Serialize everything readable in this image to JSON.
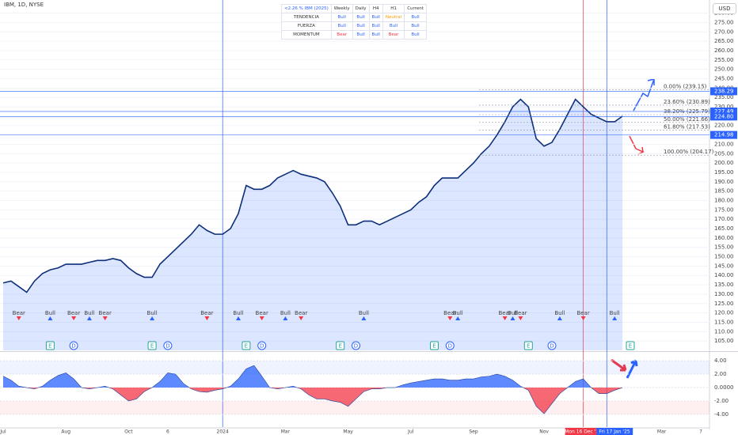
{
  "header": {
    "symbol": "IBM, 1D, NYSE",
    "currency": "USD"
  },
  "table": {
    "title": "<2.26 % IBM (2025)",
    "columns": [
      "Weekly",
      "Daily",
      "H4",
      "H1",
      "Current"
    ],
    "palette": {
      "Bull": "#2962ff",
      "Bear": "#f23645",
      "Neutral": "#ff9800"
    },
    "rows": [
      {
        "label": "TENDENCIA",
        "cells": [
          "Bull",
          "Bull",
          "Bull",
          "Neutral",
          "Bull"
        ]
      },
      {
        "label": "FUERZA",
        "cells": [
          "Bull",
          "Bull",
          "Bull",
          "Bull",
          "Bull"
        ]
      },
      {
        "label": "MOMENTUM",
        "cells": [
          "Bear",
          "Bull",
          "Bull",
          "Bear",
          "Bull"
        ]
      }
    ]
  },
  "chart_data": [
    {
      "type": "line",
      "color": "#0d2f7a",
      "area_color": "rgba(41,98,255,0.16)",
      "grid": true,
      "categories": [
        "Jul",
        null,
        null,
        null,
        null,
        null,
        null,
        null,
        "Aug",
        null,
        null,
        null,
        null,
        null,
        null,
        null,
        "Oct",
        null,
        null,
        null,
        null,
        "6",
        null,
        null,
        null,
        null,
        null,
        null,
        "2024",
        null,
        null,
        null,
        null,
        null,
        null,
        null,
        "Mar",
        null,
        null,
        null,
        null,
        null,
        null,
        null,
        "May",
        null,
        null,
        null,
        null,
        null,
        null,
        null,
        "Jul",
        null,
        null,
        null,
        null,
        null,
        null,
        null,
        "Sep",
        null,
        null,
        null,
        null,
        null,
        null,
        null,
        null,
        "Nov",
        null,
        null,
        null,
        null,
        "Mon 16 Dec '24",
        null,
        null,
        null,
        "Fri 17 Jan '25",
        null,
        null,
        null,
        null,
        null,
        "Mar",
        null,
        null,
        null,
        null,
        "7"
      ],
      "values": [
        136,
        137,
        134,
        131,
        137,
        141,
        143,
        144,
        146,
        146,
        146,
        147,
        148,
        148,
        149,
        148,
        144,
        141,
        139,
        139,
        146,
        150,
        154,
        158,
        162,
        167,
        164,
        162,
        162,
        165,
        173,
        188,
        186,
        186,
        188,
        192,
        194,
        196,
        194,
        193,
        192,
        190,
        184,
        177,
        167,
        167,
        169,
        169,
        167,
        169,
        171,
        173,
        175,
        179,
        182,
        188,
        192,
        192,
        192,
        196,
        200,
        205,
        209,
        215,
        222,
        230,
        234,
        230,
        213,
        209,
        211,
        218,
        226,
        234,
        230,
        226,
        224,
        222,
        222,
        225,
        null,
        null,
        null,
        null,
        null,
        null,
        null,
        null,
        null,
        null
      ],
      "signals": [
        null,
        null,
        "Bear",
        null,
        null,
        null,
        "Bull",
        null,
        null,
        "Bear",
        null,
        "Bull",
        null,
        "Bear",
        null,
        null,
        null,
        null,
        null,
        "Bull",
        null,
        null,
        null,
        null,
        null,
        null,
        "Bear",
        null,
        null,
        null,
        "Bull",
        null,
        null,
        "Bear",
        null,
        null,
        "Bull",
        null,
        "Bear",
        null,
        null,
        null,
        null,
        null,
        null,
        null,
        "Bull",
        null,
        null,
        null,
        null,
        null,
        null,
        null,
        null,
        null,
        null,
        "Bear",
        "Bull",
        null,
        null,
        null,
        null,
        null,
        "Bear",
        "Bull",
        "Bear",
        null,
        null,
        null,
        null,
        "Bull",
        null,
        null,
        "Bear",
        null,
        null,
        null,
        "Bull",
        null,
        null,
        null,
        null,
        null,
        null,
        null,
        null,
        null,
        null,
        null
      ],
      "signal_styles": {
        "Bull": {
          "color": "#2962ff",
          "direction": "up"
        },
        "Bear": {
          "color": "#f23645",
          "direction": "down"
        }
      },
      "events": [
        null,
        null,
        null,
        null,
        null,
        null,
        "E",
        null,
        null,
        "D",
        null,
        null,
        null,
        null,
        null,
        null,
        null,
        null,
        null,
        "E",
        null,
        "D",
        null,
        null,
        null,
        null,
        null,
        null,
        null,
        null,
        null,
        "E",
        null,
        "D",
        null,
        null,
        null,
        null,
        null,
        null,
        null,
        null,
        null,
        "E",
        null,
        "D",
        null,
        null,
        null,
        null,
        null,
        null,
        null,
        null,
        null,
        "E",
        null,
        "D",
        null,
        null,
        null,
        null,
        null,
        null,
        null,
        null,
        null,
        "E",
        null,
        null,
        "D",
        null,
        null,
        null,
        null,
        null,
        null,
        null,
        null,
        null,
        "E",
        null,
        null,
        null,
        null,
        null,
        null,
        null,
        null,
        null
      ],
      "event_colors": {
        "E": "#26a69a",
        "D": "#2962ff"
      },
      "fib_levels": [
        {
          "value": 239.15,
          "label": "0.00% (239.15)"
        },
        {
          "value": 230.89,
          "label": "23.60% (230.89)"
        },
        {
          "value": 225.79,
          "label": "38.20% (225.79)"
        },
        {
          "value": 221.66,
          "label": "50.00% (221.66)"
        },
        {
          "value": 217.53,
          "label": "61.80% (217.53)"
        },
        {
          "value": 204.17,
          "label": "100.00% (204.17)"
        }
      ],
      "price_labels": [
        238.29,
        227.49,
        {
          "value": 224.8,
          "label": "224.80"
        },
        214.98
      ],
      "ylim": [
        100,
        287
      ],
      "yticks": [
        {
          "value": 105,
          "label": "105.00"
        },
        {
          "value": 110,
          "label": "110.00"
        },
        {
          "value": 115,
          "label": "115.00"
        },
        {
          "value": 120,
          "label": "120.00"
        },
        {
          "value": 125,
          "label": "125.00"
        },
        {
          "value": 130,
          "label": "130.00"
        },
        {
          "value": 135,
          "label": "135.00"
        },
        {
          "value": 140,
          "label": "140.00"
        },
        {
          "value": 145,
          "label": "145.00"
        },
        {
          "value": 150,
          "label": "150.00"
        },
        {
          "value": 155,
          "label": "155.00"
        },
        {
          "value": 160,
          "label": "160.00"
        },
        {
          "value": 165,
          "label": "165.00"
        },
        {
          "value": 170,
          "label": "170.00"
        },
        {
          "value": 175,
          "label": "175.00"
        },
        {
          "value": 180,
          "label": "180.00"
        },
        {
          "value": 185,
          "label": "185.00"
        },
        {
          "value": 190,
          "label": "190.00"
        },
        {
          "value": 195,
          "label": "195.00"
        },
        {
          "value": 200,
          "label": "200.00"
        },
        {
          "value": 205,
          "label": "205.00"
        },
        {
          "value": 210,
          "label": "210.00"
        },
        {
          "value": 215,
          "label": "215.00"
        },
        {
          "value": 220,
          "label": "220.00"
        },
        {
          "value": 225,
          "label": "225.00"
        },
        {
          "value": 230,
          "label": "230.00"
        },
        {
          "value": 235,
          "label": "235.00"
        },
        {
          "value": 240,
          "label": "240.00"
        },
        {
          "value": 245,
          "label": "245.00"
        },
        {
          "value": 250,
          "label": "250.00"
        },
        {
          "value": 255,
          "label": "255.00"
        },
        {
          "value": 260,
          "label": "260.00"
        },
        {
          "value": 265,
          "label": "265.00"
        },
        {
          "value": 270,
          "label": "270.00"
        },
        {
          "value": 275,
          "label": "275.00"
        },
        {
          "value": 280,
          "label": "280.00"
        }
      ]
    },
    {
      "type": "area",
      "positive_color": "#2962ff",
      "negative_color": "#f23645",
      "values": [
        1.7,
        1.1,
        0.2,
        0,
        -0.2,
        0.2,
        1.1,
        1.8,
        2.2,
        1.3,
        0,
        -0.2,
        0,
        0.2,
        -0.2,
        -1.1,
        -2,
        -1.7,
        -0.6,
        0,
        0.9,
        2.2,
        2,
        0.6,
        -0.2,
        -0.6,
        -0.7,
        -0.4,
        -0.2,
        0.2,
        1.3,
        2.8,
        3.3,
        1.7,
        0,
        -0.2,
        0,
        0.2,
        -0.2,
        -1.1,
        -1.7,
        -1.7,
        -2,
        -2.2,
        -2.8,
        -1.7,
        -0.6,
        -0.2,
        -0.2,
        0,
        0,
        0.4,
        0.7,
        0.9,
        1.1,
        1.3,
        1.3,
        1.1,
        1.1,
        1.3,
        1.3,
        1.6,
        1.7,
        2,
        1.7,
        1.1,
        0.2,
        -0.4,
        -2.8,
        -3.9,
        -2.4,
        -0.9,
        0,
        0.9,
        1.3,
        0,
        -0.9,
        -0.9,
        -0.4,
        0,
        null,
        null,
        null,
        null,
        null,
        null,
        null,
        null,
        null,
        null
      ],
      "ylim": [
        -5.9,
        5.2
      ],
      "yticks": [
        {
          "value": 4,
          "label": "4.00"
        },
        {
          "value": 2,
          "label": "2.00"
        },
        {
          "value": 0,
          "label": "0.0000"
        },
        {
          "value": -2,
          "label": "-2.00"
        },
        {
          "value": -4,
          "label": "-4.00"
        }
      ]
    }
  ]
}
